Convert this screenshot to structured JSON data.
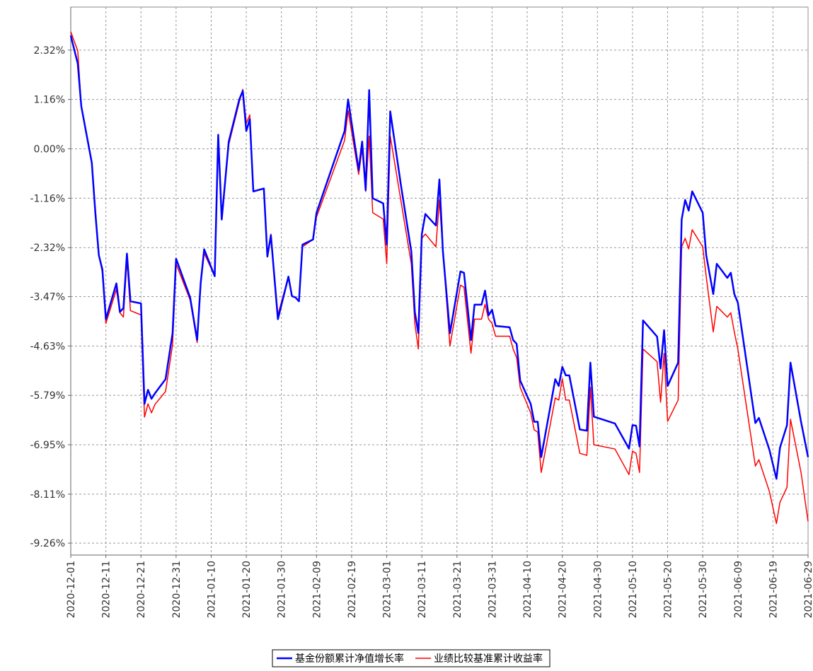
{
  "chart_data": {
    "type": "line",
    "x": [
      "2020-12-01",
      "2020-12-03",
      "2020-12-04",
      "2020-12-07",
      "2020-12-08",
      "2020-12-09",
      "2020-12-10",
      "2020-12-11",
      "2020-12-14",
      "2020-12-15",
      "2020-12-16",
      "2020-12-17",
      "2020-12-18",
      "2020-12-21",
      "2020-12-22",
      "2020-12-23",
      "2020-12-24",
      "2020-12-25",
      "2020-12-28",
      "2020-12-30",
      "2020-12-31",
      "2021-01-04",
      "2021-01-06",
      "2021-01-07",
      "2021-01-08",
      "2021-01-11",
      "2021-01-12",
      "2021-01-13",
      "2021-01-15",
      "2021-01-18",
      "2021-01-19",
      "2021-01-20",
      "2021-01-21",
      "2021-01-22",
      "2021-01-25",
      "2021-01-26",
      "2021-01-27",
      "2021-01-29",
      "2021-02-01",
      "2021-02-02",
      "2021-02-03",
      "2021-02-04",
      "2021-02-05",
      "2021-02-08",
      "2021-02-09",
      "2021-02-17",
      "2021-02-18",
      "2021-02-21",
      "2021-02-22",
      "2021-02-23",
      "2021-02-24",
      "2021-02-25",
      "2021-02-28",
      "2021-03-01",
      "2021-03-02",
      "2021-03-05",
      "2021-03-08",
      "2021-03-09",
      "2021-03-10",
      "2021-03-11",
      "2021-03-12",
      "2021-03-15",
      "2021-03-16",
      "2021-03-17",
      "2021-03-19",
      "2021-03-22",
      "2021-03-23",
      "2021-03-25",
      "2021-03-26",
      "2021-03-28",
      "2021-03-29",
      "2021-03-30",
      "2021-03-31",
      "2021-04-01",
      "2021-04-05",
      "2021-04-06",
      "2021-04-07",
      "2021-04-08",
      "2021-04-11",
      "2021-04-12",
      "2021-04-13",
      "2021-04-14",
      "2021-04-18",
      "2021-04-19",
      "2021-04-20",
      "2021-04-21",
      "2021-04-22",
      "2021-04-25",
      "2021-04-27",
      "2021-04-28",
      "2021-04-29",
      "2021-05-05",
      "2021-05-09",
      "2021-05-10",
      "2021-05-11",
      "2021-05-12",
      "2021-05-13",
      "2021-05-17",
      "2021-05-18",
      "2021-05-19",
      "2021-05-20",
      "2021-05-23",
      "2021-05-24",
      "2021-05-25",
      "2021-05-26",
      "2021-05-27",
      "2021-05-30",
      "2021-05-31",
      "2021-06-02",
      "2021-06-03",
      "2021-06-06",
      "2021-06-07",
      "2021-06-08",
      "2021-06-09",
      "2021-06-14",
      "2021-06-15",
      "2021-06-18",
      "2021-06-20",
      "2021-06-21",
      "2021-06-23",
      "2021-06-24",
      "2021-06-27",
      "2021-06-29"
    ],
    "series": [
      {
        "name": "业绩比较基准累计收益率",
        "color": "#ff0000",
        "width": 1.5,
        "values": [
          2.75,
          2.3,
          1.0,
          -0.3,
          -1.4,
          -2.5,
          -2.9,
          -4.1,
          -3.3,
          -3.85,
          -3.95,
          -2.6,
          -3.8,
          -3.9,
          -6.3,
          -5.99,
          -6.2,
          -6.0,
          -5.7,
          -4.6,
          -2.7,
          -3.55,
          -4.55,
          -3.2,
          -2.45,
          -2.99,
          0.15,
          -1.6,
          0.1,
          1.1,
          1.4,
          0.6,
          0.8,
          -1.0,
          -0.93,
          -2.5,
          -2.0,
          -3.9,
          -3.0,
          -3.46,
          -3.49,
          -3.58,
          -2.3,
          -2.13,
          -1.6,
          0.2,
          0.9,
          -0.6,
          0.0,
          -1.0,
          0.3,
          -1.5,
          -1.65,
          -2.7,
          0.3,
          -1.2,
          -2.7,
          -4.1,
          -4.7,
          -2.1,
          -2.0,
          -2.3,
          -1.2,
          -2.4,
          -4.63,
          -3.2,
          -3.25,
          -4.8,
          -4.0,
          -4.0,
          -3.65,
          -4.0,
          -4.1,
          -4.4,
          -4.4,
          -4.7,
          -4.9,
          -5.6,
          -6.2,
          -6.6,
          -6.65,
          -7.6,
          -5.85,
          -5.9,
          -5.4,
          -5.9,
          -5.9,
          -7.15,
          -7.2,
          -5.6,
          -6.95,
          -7.05,
          -7.65,
          -7.1,
          -7.15,
          -7.6,
          -4.7,
          -5.0,
          -5.95,
          -4.8,
          -6.4,
          -5.9,
          -2.3,
          -2.1,
          -2.35,
          -1.9,
          -2.3,
          -3.0,
          -4.3,
          -3.7,
          -3.95,
          -3.85,
          -4.3,
          -4.7,
          -7.45,
          -7.3,
          -8.05,
          -8.8,
          -8.3,
          -7.95,
          -6.35,
          -7.6,
          -8.75
        ]
      },
      {
        "name": "基金份额累计净值增长率",
        "color": "#0000ff",
        "width": 2.5,
        "values": [
          2.66,
          2.0,
          1.0,
          -0.33,
          -1.5,
          -2.5,
          -2.83,
          -4.0,
          -3.16,
          -3.83,
          -3.74,
          -2.46,
          -3.58,
          -3.63,
          -5.99,
          -5.66,
          -5.87,
          -5.74,
          -5.41,
          -4.33,
          -2.58,
          -3.49,
          -4.49,
          -3.16,
          -2.36,
          -2.99,
          0.33,
          -1.66,
          0.17,
          1.16,
          1.36,
          0.42,
          0.7,
          -1.0,
          -0.93,
          -2.53,
          -2.03,
          -4.0,
          -3.0,
          -3.46,
          -3.49,
          -3.58,
          -2.25,
          -2.13,
          -1.5,
          0.42,
          1.16,
          -0.5,
          0.17,
          -0.97,
          1.38,
          -1.16,
          -1.28,
          -2.25,
          0.88,
          -0.83,
          -2.41,
          -3.83,
          -4.33,
          -2.0,
          -1.53,
          -1.8,
          -0.72,
          -2.41,
          -4.33,
          -2.88,
          -2.91,
          -4.49,
          -3.66,
          -3.66,
          -3.33,
          -3.91,
          -3.78,
          -4.16,
          -4.19,
          -4.49,
          -4.58,
          -5.44,
          -5.99,
          -6.41,
          -6.41,
          -7.24,
          -5.41,
          -5.57,
          -5.12,
          -5.32,
          -5.32,
          -6.59,
          -6.62,
          -5.02,
          -6.29,
          -6.45,
          -7.04,
          -6.49,
          -6.5,
          -6.99,
          -4.03,
          -4.41,
          -5.16,
          -4.26,
          -5.57,
          -5.02,
          -1.66,
          -1.2,
          -1.45,
          -1.0,
          -1.5,
          -2.5,
          -3.41,
          -2.7,
          -3.03,
          -2.91,
          -3.41,
          -3.61,
          -6.44,
          -6.32,
          -7.07,
          -7.75,
          -7.02,
          -6.49,
          -5.02,
          -6.41,
          -7.24
        ]
      }
    ],
    "xlim": [
      "2020-12-01",
      "2021-06-29"
    ],
    "xticks": [
      "2020-12-01",
      "2020-12-11",
      "2020-12-21",
      "2020-12-31",
      "2021-01-10",
      "2021-01-20",
      "2021-01-30",
      "2021-02-09",
      "2021-02-19",
      "2021-03-01",
      "2021-03-11",
      "2021-03-21",
      "2021-03-31",
      "2021-04-10",
      "2021-04-20",
      "2021-04-30",
      "2021-05-10",
      "2021-05-20",
      "2021-05-30",
      "2021-06-09",
      "2021-06-19",
      "2021-06-29"
    ],
    "ylim": [
      -9.54,
      3.33
    ],
    "yticks": [
      {
        "value": 2.32,
        "label": "2.32%"
      },
      {
        "value": 1.16,
        "label": "1.16%"
      },
      {
        "value": 0,
        "label": "0.00%"
      },
      {
        "value": -1.16,
        "label": "-1.16%"
      },
      {
        "value": -2.32,
        "label": "-2.32%"
      },
      {
        "value": -3.47,
        "label": "-3.47%"
      },
      {
        "value": -4.63,
        "label": "-4.63%"
      },
      {
        "value": -5.79,
        "label": "-5.79%"
      },
      {
        "value": -6.95,
        "label": "-6.95%"
      },
      {
        "value": -8.11,
        "label": "-8.11%"
      },
      {
        "value": -9.26,
        "label": "-9.26%"
      }
    ],
    "grid": true
  }
}
